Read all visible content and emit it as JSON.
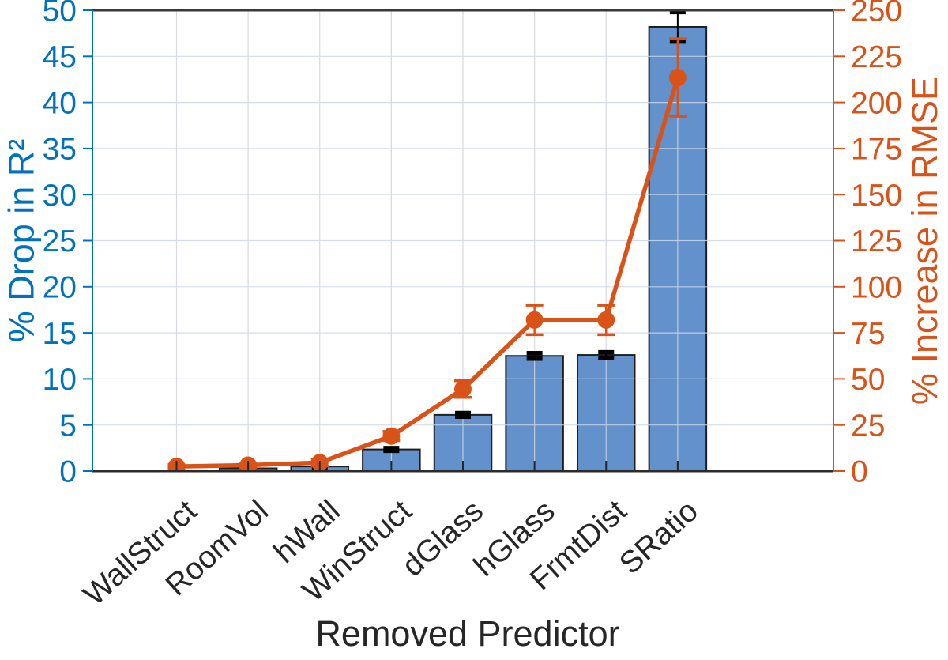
{
  "figure": {
    "background": "#ffffff"
  },
  "chart_data": {
    "type": "bar-line-dual-axis",
    "title": "",
    "xlabel": "Removed Predictor",
    "categories": [
      "WallStruct",
      "RoomVol",
      "hWall",
      "WinStruct",
      "dGlass",
      "hGlass",
      "FrmtDist",
      "SRatio"
    ],
    "x_tick_rotation_deg": -42,
    "grid": true,
    "left_axis": {
      "label": "% Drop in R²",
      "color": "#0072bd",
      "min": 0,
      "max": 50,
      "ticks": [
        0,
        5,
        10,
        15,
        20,
        25,
        30,
        35,
        40,
        45,
        50
      ]
    },
    "right_axis": {
      "label": "% Increase in RMSE",
      "color": "#d95319",
      "min": 0,
      "max": 250,
      "ticks": [
        0,
        25,
        50,
        75,
        100,
        125,
        150,
        175,
        200,
        225,
        250
      ]
    },
    "series": [
      {
        "name": "drop-in-r2",
        "type": "bar",
        "axis": "left",
        "fill": "#6291cb",
        "edge_color": "#1f1f1f",
        "error_color": "#000000",
        "values": [
          0.05,
          0.3,
          0.5,
          2.35,
          6.1,
          12.5,
          12.6,
          48.2
        ],
        "errors": [
          0.08,
          0.1,
          0.12,
          0.15,
          0.2,
          0.3,
          0.3,
          1.6
        ]
      },
      {
        "name": "increase-in-rmse",
        "type": "line",
        "axis": "right",
        "color": "#d95319",
        "marker": "filled-circle",
        "values": [
          2.5,
          3.2,
          4.6,
          19,
          44.5,
          82,
          82,
          213.5
        ],
        "errors": [
          1,
          1.2,
          1.8,
          2.5,
          4.5,
          8,
          8,
          21
        ]
      }
    ],
    "spine_colors": {
      "top": "#3a3a3a",
      "bottom": "#2b2b2b",
      "left": "#0072bd",
      "right": "#d95319"
    },
    "grid_colors": {
      "horizontal": "#ccd7ec",
      "vertical": "#d2d2da"
    }
  }
}
